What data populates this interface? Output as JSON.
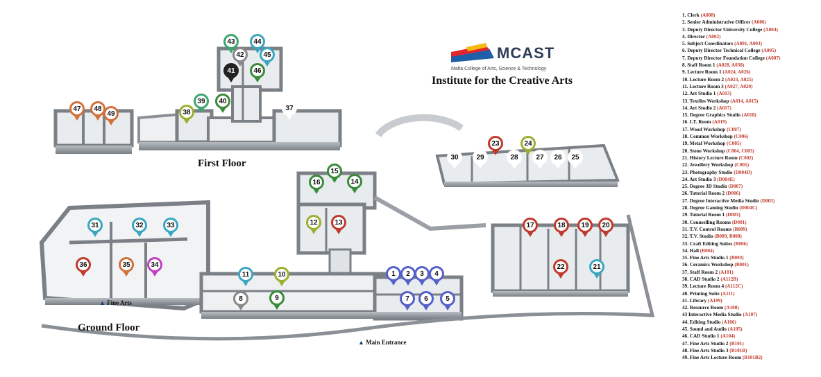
{
  "logo": {
    "name": "MCAST",
    "tagline": "Malta College of Arts, Science & Technology"
  },
  "title": "Institute for the Creative Arts",
  "floors": {
    "first": "First Floor",
    "ground": "Ground Floor"
  },
  "markers": {
    "fine_arts": "Fine Arts",
    "main_entrance": "Main Entrance"
  },
  "colors": {
    "accent_red": "#c0392b",
    "wall": "#8e949a",
    "floor": "#e9ecee"
  },
  "pins": [
    {
      "n": "1",
      "c": "#5560c8"
    },
    {
      "n": "2",
      "c": "#5560c8"
    },
    {
      "n": "3",
      "c": "#5560c8"
    },
    {
      "n": "4",
      "c": "#5560c8"
    },
    {
      "n": "5",
      "c": "#5560c8"
    },
    {
      "n": "6",
      "c": "#5560c8"
    },
    {
      "n": "7",
      "c": "#5560c8"
    },
    {
      "n": "8",
      "c": "#888888"
    },
    {
      "n": "9",
      "c": "#3a8a3a"
    },
    {
      "n": "10",
      "c": "#9ab030"
    },
    {
      "n": "11",
      "c": "#3aa6c0"
    },
    {
      "n": "12",
      "c": "#9ab030"
    },
    {
      "n": "13",
      "c": "#c0392b"
    },
    {
      "n": "14",
      "c": "#3a8a3a"
    },
    {
      "n": "15",
      "c": "#3a8a3a"
    },
    {
      "n": "16",
      "c": "#3a8a3a"
    },
    {
      "n": "17",
      "c": "#c0392b"
    },
    {
      "n": "18",
      "c": "#c0392b"
    },
    {
      "n": "19",
      "c": "#c0392b"
    },
    {
      "n": "20",
      "c": "#c0392b"
    },
    {
      "n": "21",
      "c": "#3aa6c0"
    },
    {
      "n": "22",
      "c": "#c0392b"
    },
    {
      "n": "23",
      "c": "#c0392b"
    },
    {
      "n": "24",
      "c": "#9ab030"
    },
    {
      "n": "25",
      "c": "#ffffff"
    },
    {
      "n": "26",
      "c": "#ffffff"
    },
    {
      "n": "27",
      "c": "#ffffff"
    },
    {
      "n": "28",
      "c": "#ffffff"
    },
    {
      "n": "29",
      "c": "#ffffff"
    },
    {
      "n": "30",
      "c": "#ffffff"
    },
    {
      "n": "31",
      "c": "#3aa6c0"
    },
    {
      "n": "32",
      "c": "#3aa6c0"
    },
    {
      "n": "33",
      "c": "#3aa6c0"
    },
    {
      "n": "34",
      "c": "#c040c0"
    },
    {
      "n": "35",
      "c": "#d2703a"
    },
    {
      "n": "36",
      "c": "#c0392b"
    },
    {
      "n": "37",
      "c": "#ffffff"
    },
    {
      "n": "38",
      "c": "#9ab030"
    },
    {
      "n": "39",
      "c": "#3aa670"
    },
    {
      "n": "40",
      "c": "#3a8a3a"
    },
    {
      "n": "41",
      "c": "#222222"
    },
    {
      "n": "42",
      "c": "#888888"
    },
    {
      "n": "43",
      "c": "#3aa670"
    },
    {
      "n": "44",
      "c": "#3aa6c0"
    },
    {
      "n": "45",
      "c": "#3aa6c0"
    },
    {
      "n": "46",
      "c": "#3a8a3a"
    },
    {
      "n": "47",
      "c": "#d2703a"
    },
    {
      "n": "48",
      "c": "#d2703a"
    },
    {
      "n": "49",
      "c": "#d2703a"
    }
  ],
  "legend": [
    {
      "t": "1. Clerk ",
      "c": "(A008)"
    },
    {
      "t": "2. Senior Administrative Officer ",
      "c": "(A006)"
    },
    {
      "t": "3. Deputy Director University College ",
      "c": "(A004)"
    },
    {
      "t": "4. Director ",
      "c": "(A002)"
    },
    {
      "t": "5. Subject Coordinators ",
      "c": "(A001, A003)"
    },
    {
      "t": "6. Deputy Director Technical College ",
      "c": "(A005)"
    },
    {
      "t": "7. Deputy Director Foundation College ",
      "c": "(A007)"
    },
    {
      "t": "8. Staff Room 1 ",
      "c": "(A028, A030)"
    },
    {
      "t": "9. Lecture Room 1 ",
      "c": "(A024, A026)"
    },
    {
      "t": "10. Lecture Room 2 ",
      "c": "(A023, A025)"
    },
    {
      "t": "11. Lecture Room 3 ",
      "c": "(A027, A029)"
    },
    {
      "t": "12. Art Studio 1 ",
      "c": "(A013)"
    },
    {
      "t": "13. Textiles Workshop ",
      "c": "(A014, A015)"
    },
    {
      "t": "14. Art Studio 2 ",
      "c": "(A017)"
    },
    {
      "t": "15. Degree Graphics Studio ",
      "c": "(A018)"
    },
    {
      "t": "16. I.T. Room ",
      "c": "(A019)"
    },
    {
      "t": "17. Wood Workshop ",
      "c": "(C007)"
    },
    {
      "t": "18. Common Workshop ",
      "c": "(C006)"
    },
    {
      "t": "19. Metal Workshop ",
      "c": "(C005)"
    },
    {
      "t": "20. Stone Workshop ",
      "c": "(C004, C003)"
    },
    {
      "t": "21. History Lecture Room ",
      "c": "(C002)"
    },
    {
      "t": "22. Jewellery Workshop ",
      "c": "(C001)"
    },
    {
      "t": "23. Photography Studio ",
      "c": "(D004D)"
    },
    {
      "t": "24. Art Studio 3 ",
      "c": "(D004E)"
    },
    {
      "t": "25. Degree 3D Studio ",
      "c": "(D007)"
    },
    {
      "t": "26. Tutorial Room 2 ",
      "c": "(D006)"
    },
    {
      "t": "27. Degree Interactive Media Studio ",
      "c": "(D005)"
    },
    {
      "t": "28. Degree Gaming Studio ",
      "c": "(D004C)"
    },
    {
      "t": "29. Tutorial Room 1 ",
      "c": "(D003)"
    },
    {
      "t": "30. Counselling Rooms ",
      "c": "(D001)"
    },
    {
      "t": "31. T.V. Control Rooms ",
      "c": "(B009)"
    },
    {
      "t": "32. T.V. Studio ",
      "c": "(B009, B008)"
    },
    {
      "t": "33. Craft Editing Suites ",
      "c": "(B006)"
    },
    {
      "t": "34. Hall ",
      "c": "(B004)"
    },
    {
      "t": "35. Fine Arts Studio 1 ",
      "c": "(B003)"
    },
    {
      "t": "36. Ceramics Workshop ",
      "c": "(B001)"
    },
    {
      "t": "37. Staff Room 2 ",
      "c": "(A101)"
    },
    {
      "t": "38. CAD Studio 2 ",
      "c": "(A112B)"
    },
    {
      "t": "39. Lecture Room 4 ",
      "c": "(A112C)"
    },
    {
      "t": "40. Printing Suite ",
      "c": "(A111)"
    },
    {
      "t": "41. Library ",
      "c": "(A109)"
    },
    {
      "t": "42. Resource Room ",
      "c": "(A108)"
    },
    {
      "t": "43 Interactive Media Studio ",
      "c": "(A107)"
    },
    {
      "t": "44. Editing Studio ",
      "c": "(A106)"
    },
    {
      "t": "45. Sound and Audio ",
      "c": "(A105)"
    },
    {
      "t": "46. CAD Studio 1 ",
      "c": "(A104)"
    },
    {
      "t": "47. Fine Arts Studio 2 ",
      "c": "(B101)"
    },
    {
      "t": "48. Fine Arts Studio 3 ",
      "c": "(B101B)"
    },
    {
      "t": "49. Fine Arts Lecture Room ",
      "c": "(B101B2)"
    }
  ]
}
